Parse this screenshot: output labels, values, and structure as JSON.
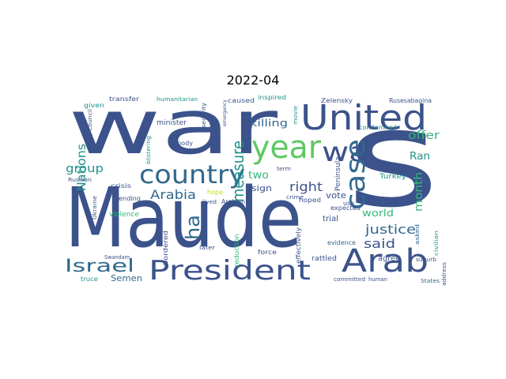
{
  "figure": {
    "title": "2022-04"
  },
  "palette": {
    "navy": "#3b528b",
    "blue": "#31688e",
    "teal": "#21918c",
    "green": "#35b779",
    "lime": "#5ec962",
    "yellow": "#b5de2b",
    "purple": "#472d7b"
  },
  "words": [
    {
      "text": "war",
      "c": "navy"
    },
    {
      "text": "Maude",
      "c": "navy"
    },
    {
      "text": "s",
      "c": "navy"
    },
    {
      "text": "United",
      "c": "navy"
    },
    {
      "text": "year",
      "c": "lime"
    },
    {
      "text": "wa",
      "c": "navy"
    },
    {
      "text": "country",
      "c": "blue"
    },
    {
      "text": "case",
      "c": "blue"
    },
    {
      "text": "President",
      "c": "navy"
    },
    {
      "text": "Arab",
      "c": "navy"
    },
    {
      "text": "Israel",
      "c": "blue"
    },
    {
      "text": "measure",
      "c": "teal"
    },
    {
      "text": "Nations",
      "c": "teal"
    },
    {
      "text": "group",
      "c": "teal"
    },
    {
      "text": "Arabia",
      "c": "blue"
    },
    {
      "text": "ha",
      "c": "blue"
    },
    {
      "text": "offer",
      "c": "green"
    },
    {
      "text": "Ran",
      "c": "teal"
    },
    {
      "text": "month",
      "c": "green"
    },
    {
      "text": "justice",
      "c": "blue"
    },
    {
      "text": "said",
      "c": "navy"
    },
    {
      "text": "right",
      "c": "navy"
    },
    {
      "text": "two",
      "c": "green"
    },
    {
      "text": "killing",
      "c": "blue"
    },
    {
      "text": "Semen",
      "c": "blue"
    },
    {
      "text": "world",
      "c": "green"
    },
    {
      "text": "vote",
      "c": "navy"
    },
    {
      "text": "sign",
      "c": "navy"
    },
    {
      "text": "Zelensky",
      "c": "navy"
    },
    {
      "text": "Rusesabagina",
      "c": "navy"
    },
    {
      "text": "Turkey",
      "c": "teal"
    },
    {
      "text": "condemned",
      "c": "teal"
    },
    {
      "text": "caused",
      "c": "navy"
    },
    {
      "text": "inspired",
      "c": "teal"
    },
    {
      "text": "transfer",
      "c": "navy"
    },
    {
      "text": "given",
      "c": "teal"
    },
    {
      "text": "minister",
      "c": "navy"
    },
    {
      "text": "humanitarian",
      "c": "teal"
    },
    {
      "text": "Peninsula",
      "c": "navy"
    },
    {
      "text": "hoped",
      "c": "navy"
    },
    {
      "text": "expected",
      "c": "navy"
    },
    {
      "text": "trial",
      "c": "navy"
    },
    {
      "text": "civilian",
      "c": "teal"
    },
    {
      "text": "asked",
      "c": "blue"
    },
    {
      "text": "agree",
      "c": "navy"
    },
    {
      "text": "rattled",
      "c": "navy"
    },
    {
      "text": "evidence",
      "c": "blue"
    },
    {
      "text": "suburb",
      "c": "navy"
    },
    {
      "text": "force",
      "c": "navy"
    },
    {
      "text": "effectively",
      "c": "navy"
    },
    {
      "text": "reduction",
      "c": "green"
    },
    {
      "text": "bordered",
      "c": "navy"
    },
    {
      "text": "violence",
      "c": "green"
    },
    {
      "text": "ending",
      "c": "navy"
    },
    {
      "text": "crisis",
      "c": "navy"
    },
    {
      "text": "Russian",
      "c": "navy"
    },
    {
      "text": "Ukraine",
      "c": "navy"
    },
    {
      "text": "Council",
      "c": "navy"
    },
    {
      "text": "truce",
      "c": "teal"
    },
    {
      "text": "Swandam",
      "c": "navy"
    },
    {
      "text": "body",
      "c": "navy"
    },
    {
      "text": "later",
      "c": "navy"
    },
    {
      "text": "lived",
      "c": "navy"
    },
    {
      "text": "hope",
      "c": "yellow"
    },
    {
      "text": "Arabian",
      "c": "navy"
    },
    {
      "text": "committed",
      "c": "navy"
    },
    {
      "text": "human",
      "c": "navy"
    },
    {
      "text": "States",
      "c": "blue"
    },
    {
      "text": "address",
      "c": "navy"
    },
    {
      "text": "blistering",
      "c": "teal"
    },
    {
      "text": "security",
      "c": "navy"
    },
    {
      "text": "use",
      "c": "navy"
    },
    {
      "text": "term",
      "c": "navy"
    },
    {
      "text": "crime",
      "c": "navy"
    },
    {
      "text": "movie",
      "c": "teal"
    },
    {
      "text": "emergency",
      "c": "navy"
    }
  ]
}
